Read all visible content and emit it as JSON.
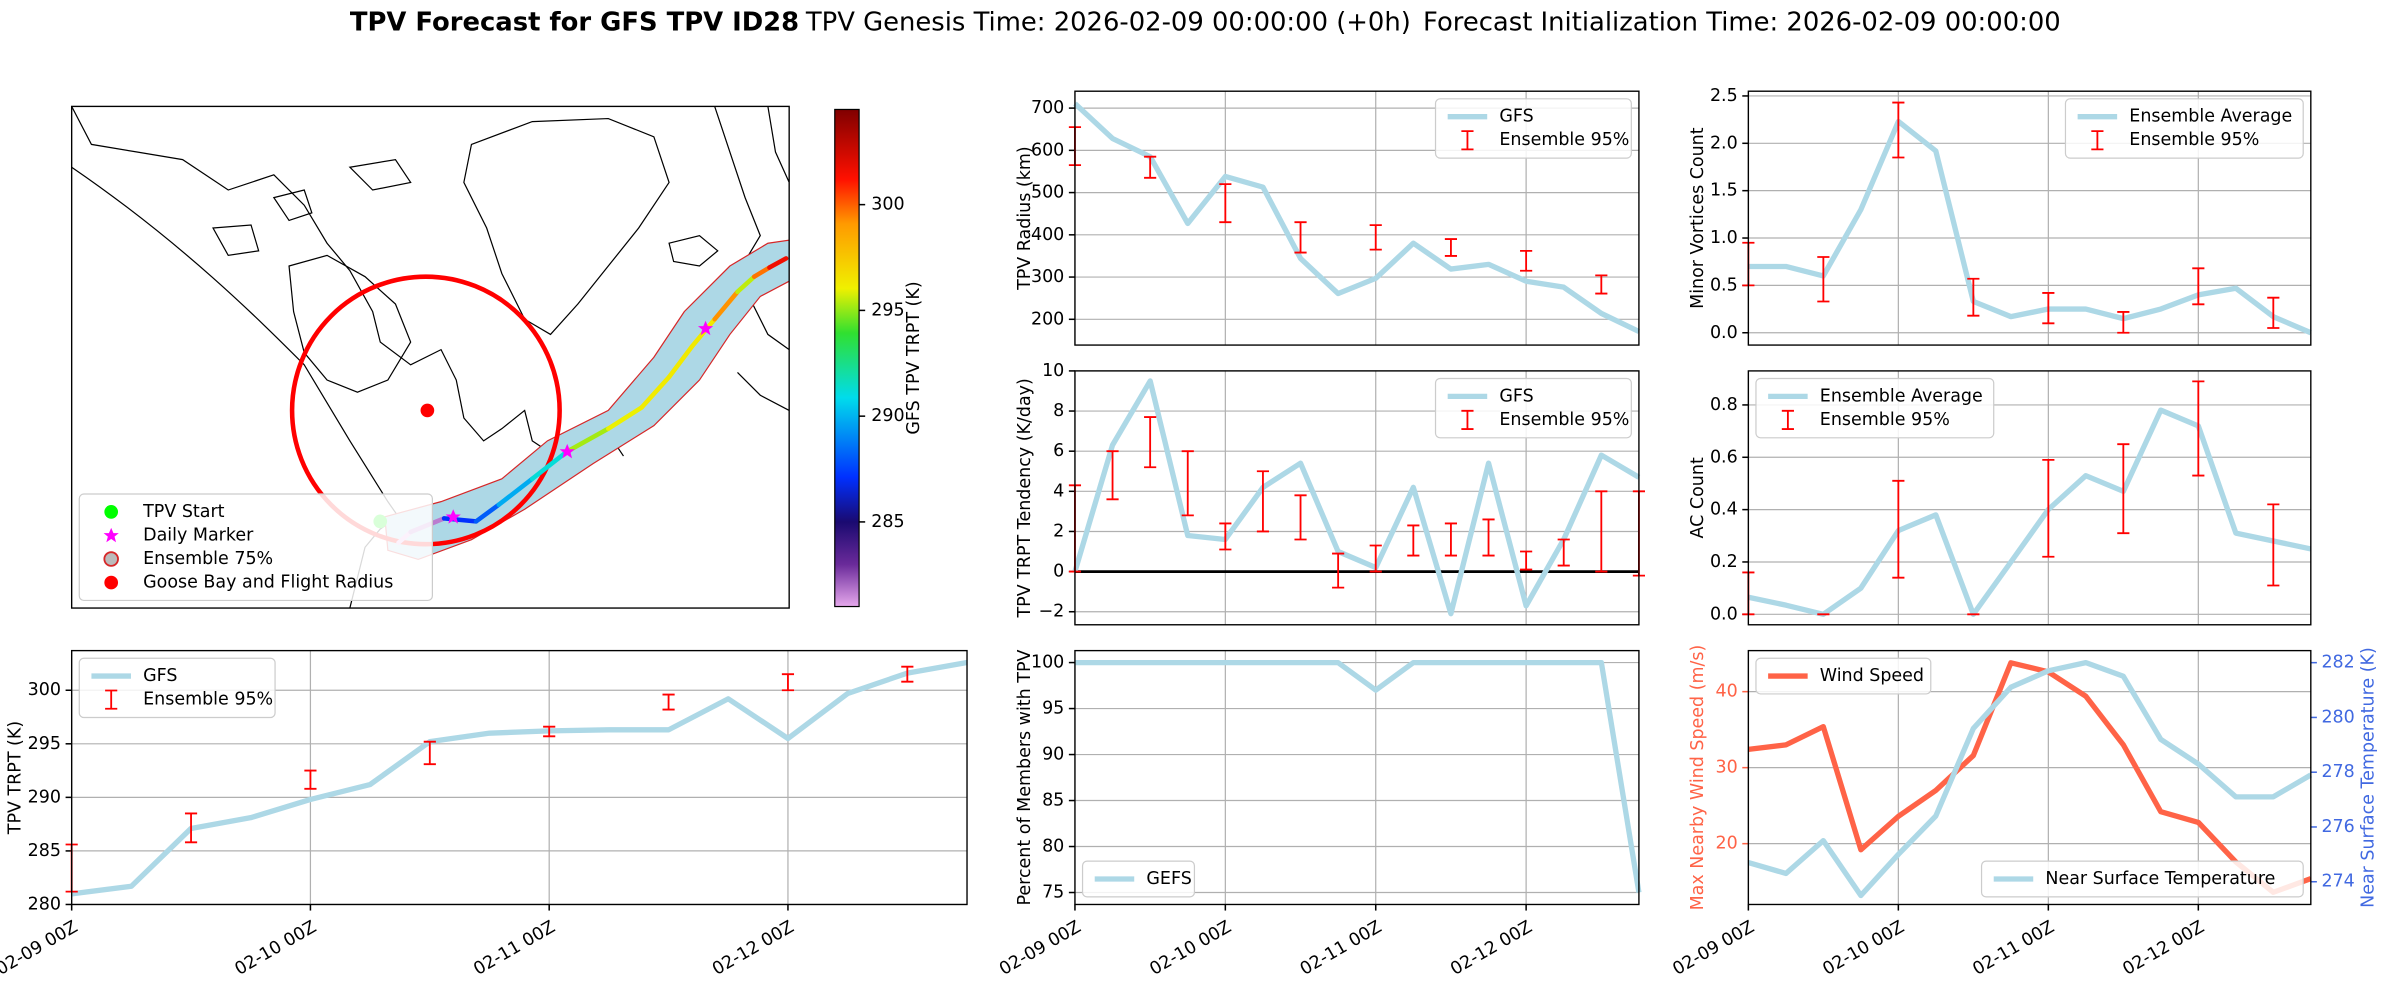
{
  "suptitle": {
    "bold": "TPV Forecast for GFS TPV ID28",
    "genesis": "TPV Genesis Time: 2026-02-09 00:00:00 (+0h)",
    "init": "Forecast Initialization Time: 2026-02-09 00:00:00"
  },
  "chart_data": [
    {
      "type": "map",
      "colorbar": {
        "label": "GFS TPV TRPT (K)",
        "clim": [
          281,
          304.5
        ],
        "ticks": [
          285,
          290,
          295,
          300
        ]
      },
      "legend_corner": "lower left",
      "legend": [
        {
          "name": "TPV Start",
          "color": "#00ff00",
          "marker": "circle"
        },
        {
          "name": "Daily Marker",
          "color": "#ff00ff",
          "marker": "star"
        },
        {
          "name": "Ensemble 75%",
          "color": "#d62728",
          "marker": "ring"
        },
        {
          "name": "Goose Bay and Flight Radius",
          "color": "#ff0000",
          "marker": "circle"
        }
      ]
    },
    {
      "type": "line",
      "ylabel": "TPV Radius (km)",
      "ylim": [
        139,
        740
      ],
      "yticks": [
        200,
        300,
        400,
        500,
        600,
        700
      ],
      "grid": true,
      "legend_corner": "upper right",
      "series": [
        {
          "name": "GFS",
          "color": "#add8e6",
          "values": [
            711,
            628,
            585,
            427,
            538,
            513,
            344,
            261,
            297,
            380,
            319,
            330,
            290,
            276,
            214,
            171
          ]
        }
      ],
      "ensemble": {
        "name": "Ensemble 95%",
        "color": "#ff0000",
        "low": [
          565,
          null,
          535,
          null,
          430,
          null,
          358,
          null,
          365,
          null,
          350,
          null,
          315,
          null,
          261,
          null
        ],
        "high": [
          655,
          null,
          585,
          null,
          520,
          null,
          430,
          null,
          423,
          null,
          390,
          null,
          362,
          null,
          304,
          null
        ]
      }
    },
    {
      "type": "line",
      "ylabel": "Minor Vortices Count",
      "ylim": [
        -0.13,
        2.55
      ],
      "yticks": [
        {
          "value": 0,
          "label": "0.0"
        },
        {
          "value": 0.5,
          "label": "0.5"
        },
        {
          "value": 1,
          "label": "1.0"
        },
        {
          "value": 1.5,
          "label": "1.5"
        },
        {
          "value": 2,
          "label": "2.0"
        },
        {
          "value": 2.5,
          "label": "2.5"
        }
      ],
      "grid": true,
      "legend_corner": "upper right",
      "series": [
        {
          "name": "Ensemble Average",
          "color": "#add8e6",
          "values": [
            0.7,
            0.7,
            0.6,
            1.3,
            2.23,
            1.92,
            0.33,
            0.17,
            0.25,
            0.25,
            0.15,
            0.25,
            0.4,
            0.47,
            0.17,
            0
          ]
        }
      ],
      "ensemble": {
        "name": "Ensemble 95%",
        "color": "#ff0000",
        "low": [
          0.5,
          null,
          0.33,
          null,
          1.85,
          null,
          0.18,
          null,
          0.1,
          null,
          0,
          null,
          0.3,
          null,
          0.05,
          null
        ],
        "high": [
          0.95,
          null,
          0.8,
          null,
          2.43,
          null,
          0.57,
          null,
          0.42,
          null,
          0.22,
          null,
          0.68,
          null,
          0.37,
          null
        ]
      }
    },
    {
      "type": "line",
      "ylabel": "TPV TRPT Tendency (K/day)",
      "ylim": [
        -2.65,
        10
      ],
      "yticks": [
        {
          "value": -2,
          "label": "−2"
        },
        0,
        2,
        4,
        6,
        8,
        10
      ],
      "grid": true,
      "legend_corner": "upper right",
      "hline": 0,
      "series": [
        {
          "name": "GFS",
          "color": "#add8e6",
          "values": [
            0,
            6.3,
            9.5,
            1.8,
            1.6,
            4.2,
            5.4,
            1.0,
            0.2,
            4.2,
            -2.1,
            5.4,
            -1.7,
            1.6,
            5.8,
            4.7
          ]
        }
      ],
      "ensemble": {
        "name": "Ensemble 95%",
        "color": "#ff0000",
        "low": [
          0,
          3.6,
          5.2,
          2.8,
          1.1,
          2.0,
          1.6,
          -0.8,
          0,
          0.8,
          0.8,
          0.8,
          0.1,
          0.3,
          0,
          -0.2
        ],
        "high": [
          4.3,
          6.0,
          7.7,
          6.0,
          2.4,
          5.0,
          3.8,
          0.9,
          1.3,
          2.3,
          2.4,
          2.6,
          1.0,
          1.6,
          4.0,
          4.0
        ]
      }
    },
    {
      "type": "line",
      "ylabel": "AC Count",
      "ylim": [
        -0.04,
        0.93
      ],
      "yticks": [
        {
          "value": 0,
          "label": "0.0"
        },
        {
          "value": 0.2,
          "label": "0.2"
        },
        {
          "value": 0.4,
          "label": "0.4"
        },
        {
          "value": 0.6,
          "label": "0.6"
        },
        {
          "value": 0.8,
          "label": "0.8"
        }
      ],
      "grid": true,
      "legend_corner": "upper left",
      "series": [
        {
          "name": "Ensemble Average",
          "color": "#add8e6",
          "values": [
            0.065,
            0.035,
            0,
            0.1,
            0.32,
            0.38,
            0,
            0.2,
            0.4,
            0.53,
            0.47,
            0.78,
            0.72,
            0.31,
            0.28,
            0.25
          ]
        }
      ],
      "ensemble": {
        "name": "Ensemble 95%",
        "color": "#ff0000",
        "low": [
          0,
          null,
          0,
          null,
          0.14,
          null,
          0,
          null,
          0.22,
          null,
          0.31,
          null,
          0.53,
          null,
          0.11,
          null
        ],
        "high": [
          0.16,
          null,
          0,
          null,
          0.51,
          null,
          0,
          null,
          0.59,
          null,
          0.65,
          null,
          0.89,
          null,
          0.42,
          null
        ]
      }
    },
    {
      "type": "line",
      "ylabel": "TPV TRPT (K)",
      "ylim": [
        280,
        303.7
      ],
      "yticks": [
        280,
        285,
        290,
        295,
        300
      ],
      "grid": true,
      "legend_corner": "upper left",
      "categories": [
        "02-09 00Z",
        null,
        null,
        null,
        "02-10 00Z",
        null,
        null,
        null,
        "02-11 00Z",
        null,
        null,
        null,
        "02-12 00Z",
        null,
        null,
        null
      ],
      "series": [
        {
          "name": "GFS",
          "color": "#add8e6",
          "values": [
            281.0,
            281.7,
            287.1,
            288.1,
            289.8,
            291.2,
            295.2,
            296.0,
            296.2,
            296.3,
            296.3,
            299.2,
            295.5,
            299.7,
            301.6,
            302.6
          ]
        }
      ],
      "ensemble": {
        "name": "Ensemble 95%",
        "color": "#ff0000",
        "low": [
          281.2,
          null,
          285.8,
          null,
          290.8,
          null,
          293.1,
          null,
          295.7,
          null,
          298.2,
          null,
          300.0,
          null,
          300.8,
          null
        ],
        "high": [
          285.6,
          null,
          288.5,
          null,
          292.5,
          null,
          295.2,
          null,
          296.6,
          null,
          299.6,
          null,
          301.5,
          null,
          302.2,
          null
        ]
      }
    },
    {
      "type": "line",
      "ylabel": "Percent of Members with TPV",
      "ylim": [
        73.7,
        101.3
      ],
      "yticks": [
        75,
        80,
        85,
        90,
        95,
        100
      ],
      "grid": true,
      "legend_corner": "lower left",
      "categories": [
        "02-09 00Z",
        null,
        null,
        null,
        "02-10 00Z",
        null,
        null,
        null,
        "02-11 00Z",
        null,
        null,
        null,
        "02-12 00Z",
        null,
        null,
        null
      ],
      "series": [
        {
          "name": "GEFS",
          "color": "#add8e6",
          "values": [
            100,
            100,
            100,
            100,
            100,
            100,
            100,
            100,
            97,
            100,
            100,
            100,
            100,
            100,
            100,
            75
          ]
        }
      ]
    },
    {
      "type": "line",
      "ylabel": "Max Nearby Wind Speed (m/s)",
      "ylabel_color": "#ff6347",
      "y2label": "Near Surface Temperature (K)",
      "y2label_color": "#4169e1",
      "ylim": [
        12,
        45.4
      ],
      "yticks": [
        20,
        30,
        40
      ],
      "y2lim": [
        273.17,
        282.44
      ],
      "y2ticks": [
        274,
        276,
        278,
        280,
        282
      ],
      "grid": true,
      "categories": [
        "02-09 00Z",
        null,
        null,
        null,
        "02-10 00Z",
        null,
        null,
        null,
        "02-11 00Z",
        null,
        null,
        null,
        "02-12 00Z",
        null,
        null,
        null
      ],
      "series": [
        {
          "name": "Wind Speed",
          "color": "#ff6347",
          "legend": "upper left",
          "values": [
            32.4,
            33,
            35.4,
            19.2,
            23.6,
            27,
            31.6,
            43.8,
            42.6,
            39.4,
            33,
            24.2,
            22.8,
            17.6,
            13.6,
            15.4
          ]
        },
        {
          "name": "Near Surface Temperature",
          "color": "#add8e6",
          "axis": "y2",
          "legend": "lower right",
          "values": [
            274.7,
            274.3,
            275.5,
            273.5,
            275.0,
            276.4,
            279.6,
            281.1,
            281.7,
            282.0,
            281.5,
            279.2,
            278.3,
            277.1,
            277.1,
            277.9
          ]
        }
      ]
    }
  ]
}
